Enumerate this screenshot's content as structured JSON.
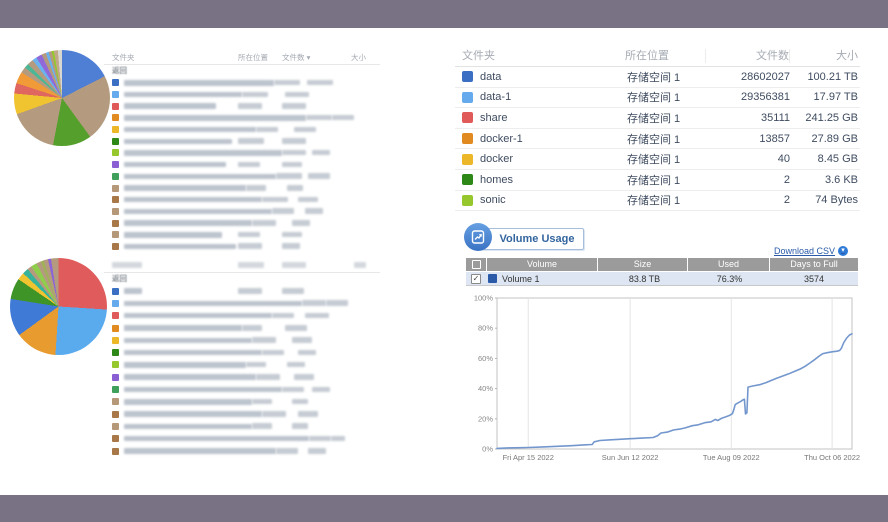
{
  "frame": {
    "bg": "#797184"
  },
  "left": {
    "top_table": {
      "headers": {
        "folder": "文件夹",
        "location": "所在位置",
        "count": "文件数",
        "size": "大小",
        "sort_arrow": "▾"
      },
      "back_label": "返回",
      "rows": [
        {
          "c": "#3a6fc4",
          "n": 150,
          "l": 26,
          "f": 26,
          "s": 14
        },
        {
          "c": "#64aaec",
          "n": 118,
          "l": 26,
          "f": 24,
          "s": 18
        },
        {
          "c": "#e05a5a",
          "n": 92,
          "l": 24,
          "f": 24,
          "s": 20
        },
        {
          "c": "#e08a20",
          "n": 182,
          "l": 26,
          "f": 22,
          "s": 20
        },
        {
          "c": "#ecb82a",
          "n": 132,
          "l": 22,
          "f": 22,
          "s": 18
        },
        {
          "c": "#2e8818",
          "n": 108,
          "l": 26,
          "f": 24,
          "s": 22
        },
        {
          "c": "#96c82e",
          "n": 158,
          "l": 24,
          "f": 18,
          "s": 14
        },
        {
          "c": "#8a5fd4",
          "n": 102,
          "l": 22,
          "f": 20,
          "s": 16
        },
        {
          "c": "#3fa05c",
          "n": 152,
          "l": 26,
          "f": 22,
          "s": 18
        },
        {
          "c": "#b49878",
          "n": 122,
          "l": 20,
          "f": 16,
          "s": 16
        },
        {
          "c": "#a87848",
          "n": 138,
          "l": 26,
          "f": 20,
          "s": 18
        },
        {
          "c": "#b49878",
          "n": 148,
          "l": 22,
          "f": 18,
          "s": 14
        },
        {
          "c": "#a87848",
          "n": 128,
          "l": 24,
          "f": 18,
          "s": 16
        },
        {
          "c": "#b49878",
          "n": 98,
          "l": 22,
          "f": 20,
          "s": 18
        },
        {
          "c": "#a87848",
          "n": 112,
          "l": 24,
          "f": 18,
          "s": 16
        }
      ],
      "pie_slices": [
        [
          "#4e7fd4",
          0,
          17.5
        ],
        [
          "#b49b7f",
          17.5,
          40
        ],
        [
          "#55a02c",
          40,
          53
        ],
        [
          "#b49b7f",
          53,
          69.5
        ],
        [
          "#f0c330",
          69.5,
          76.5
        ],
        [
          "#e06660",
          76.5,
          80
        ],
        [
          "#f09b38",
          80,
          84
        ],
        [
          "#b49b7f",
          84,
          86
        ],
        [
          "#4ab896",
          86,
          87.5
        ],
        [
          "#b49b7f",
          87.5,
          89.5
        ],
        [
          "#6cb2ee",
          89.5,
          91
        ],
        [
          "#9068d8",
          91,
          93
        ],
        [
          "#b49b7f",
          93,
          94.5
        ],
        [
          "#6cb2ee",
          94.5,
          95.5
        ],
        [
          "#b49b7f",
          95.5,
          96.5
        ],
        [
          "#96c82e",
          96.5,
          97.3
        ],
        [
          "#c0a888",
          97.3,
          98.6
        ],
        [
          "#d8d8d0",
          98.6,
          100
        ]
      ]
    },
    "bottom_table": {
      "back_label": "返回",
      "header_bars": {
        "n": 30,
        "l": 26,
        "f": 24,
        "s": 12
      },
      "rows": [
        {
          "c": "#3a6fc4",
          "n": 18,
          "l": 24,
          "f": 22,
          "s": 16
        },
        {
          "c": "#64aaec",
          "n": 178,
          "l": 24,
          "f": 22,
          "s": 18
        },
        {
          "c": "#e05a5a",
          "n": 148,
          "l": 22,
          "f": 24,
          "s": 18
        },
        {
          "c": "#e08a20",
          "n": 118,
          "l": 20,
          "f": 22,
          "s": 16
        },
        {
          "c": "#ecb82a",
          "n": 128,
          "l": 24,
          "f": 20,
          "s": 14
        },
        {
          "c": "#2e8818",
          "n": 138,
          "l": 22,
          "f": 18,
          "s": 16
        },
        {
          "c": "#96c82e",
          "n": 122,
          "l": 20,
          "f": 18,
          "s": 12
        },
        {
          "c": "#8a5fd4",
          "n": 132,
          "l": 24,
          "f": 20,
          "s": 14
        },
        {
          "c": "#3fa05c",
          "n": 158,
          "l": 22,
          "f": 18,
          "s": 16
        },
        {
          "c": "#b49878",
          "n": 128,
          "l": 20,
          "f": 16,
          "s": 12
        },
        {
          "c": "#a87848",
          "n": 138,
          "l": 24,
          "f": 20,
          "s": 14
        },
        {
          "c": "#b49878",
          "n": 128,
          "l": 20,
          "f": 16,
          "s": 14
        },
        {
          "c": "#a87848",
          "n": 185,
          "l": 22,
          "f": 14,
          "s": 20
        },
        {
          "c": "#a87848",
          "n": 152,
          "l": 22,
          "f": 18,
          "s": 22
        }
      ],
      "pie_slices": [
        [
          "#e05c5c",
          0,
          26
        ],
        [
          "#5aabee",
          26,
          51
        ],
        [
          "#e89b2e",
          51,
          65
        ],
        [
          "#3f7ad6",
          65,
          77.5
        ],
        [
          "#3f9427",
          77.5,
          84.5
        ],
        [
          "#f0c330",
          84.5,
          87
        ],
        [
          "#35b49b",
          87,
          89
        ],
        [
          "#b49b7f",
          89,
          90.5
        ],
        [
          "#8fce4c",
          90.5,
          92.5
        ],
        [
          "#b49b7f",
          92.5,
          94
        ],
        [
          "#a0b058",
          94,
          95
        ],
        [
          "#b49b7f",
          95,
          96.5
        ],
        [
          "#8a64d8",
          96.5,
          97.5
        ],
        [
          "#b49b7f",
          97.5,
          100
        ]
      ]
    }
  },
  "right": {
    "folder_table": {
      "headers": {
        "folder": "文件夹",
        "location": "所在位置",
        "count": "文件数",
        "size": "大小"
      },
      "rows": [
        {
          "name": "data",
          "color": "#3a6fc4",
          "location": "存储空间 1",
          "files": "28602027",
          "size": "100.21 TB"
        },
        {
          "name": "data-1",
          "color": "#64aaec",
          "location": "存储空间 1",
          "files": "29356381",
          "size": "17.97 TB"
        },
        {
          "name": "share",
          "color": "#e05a5a",
          "location": "存储空间 1",
          "files": "35111",
          "size": "241.25 GB"
        },
        {
          "name": "docker-1",
          "color": "#e08a20",
          "location": "存储空间 1",
          "files": "13857",
          "size": "27.89 GB"
        },
        {
          "name": "docker",
          "color": "#ecb82a",
          "location": "存储空间 1",
          "files": "40",
          "size": "8.45 GB"
        },
        {
          "name": "homes",
          "color": "#2e8818",
          "location": "存储空间 1",
          "files": "2",
          "size": "3.6 KB"
        },
        {
          "name": "sonic",
          "color": "#96c82e",
          "location": "存储空间 1",
          "files": "2",
          "size": "74 Bytes"
        }
      ]
    },
    "volume_usage": {
      "title": "Volume Usage",
      "download_label": "Download CSV",
      "table": {
        "headers": {
          "volume": "Volume",
          "size": "Size",
          "used": "Used",
          "days": "Days to Full"
        },
        "rows": [
          {
            "name": "Volume 1",
            "size": "83.8 TB",
            "used": "76.3%",
            "days": "3574",
            "checked": true,
            "color": "#2a59a8"
          }
        ]
      }
    }
  },
  "chart_data": {
    "type": "line",
    "title": "",
    "xlabel": "",
    "ylabel": "%",
    "ylim": [
      0,
      100
    ],
    "y_ticks": [
      "0%",
      "20%",
      "40%",
      "60%",
      "80%",
      "100%"
    ],
    "x_ticks": [
      "Fri Apr 15 2022",
      "Sun Jun 12 2022",
      "Tue Aug 09 2022",
      "Thu Oct 06 2022"
    ],
    "x_tick_pos": [
      0.088,
      0.375,
      0.66,
      0.944
    ],
    "grid": "vertical",
    "legend": "none",
    "line_color": "#7397cd",
    "series_name": "Volume 1 used %",
    "points": [
      [
        0,
        0.4
      ],
      [
        0.03,
        0.7
      ],
      [
        0.088,
        1
      ],
      [
        0.13,
        1.4
      ],
      [
        0.17,
        1.8
      ],
      [
        0.21,
        2.2
      ],
      [
        0.25,
        2.8
      ],
      [
        0.268,
        3
      ],
      [
        0.274,
        4.8
      ],
      [
        0.29,
        5.6
      ],
      [
        0.32,
        6.1
      ],
      [
        0.345,
        6.4
      ],
      [
        0.375,
        6.8
      ],
      [
        0.41,
        7.2
      ],
      [
        0.44,
        7.6
      ],
      [
        0.452,
        8.8
      ],
      [
        0.462,
        10.6
      ],
      [
        0.48,
        11.2
      ],
      [
        0.497,
        12.6
      ],
      [
        0.515,
        13.2
      ],
      [
        0.53,
        14
      ],
      [
        0.55,
        15.4
      ],
      [
        0.567,
        16
      ],
      [
        0.585,
        17.4
      ],
      [
        0.603,
        18
      ],
      [
        0.615,
        19.6
      ],
      [
        0.622,
        18.9
      ],
      [
        0.633,
        20.4
      ],
      [
        0.645,
        21.4
      ],
      [
        0.656,
        22.4
      ],
      [
        0.663,
        23.4
      ],
      [
        0.667,
        26
      ],
      [
        0.671,
        29.4
      ],
      [
        0.678,
        30.4
      ],
      [
        0.686,
        31.4
      ],
      [
        0.693,
        32.6
      ],
      [
        0.697,
        33
      ],
      [
        0.7,
        23.2
      ],
      [
        0.704,
        24
      ],
      [
        0.707,
        41
      ],
      [
        0.722,
        41.8
      ],
      [
        0.74,
        42.6
      ],
      [
        0.758,
        44
      ],
      [
        0.773,
        45.4
      ],
      [
        0.788,
        46.8
      ],
      [
        0.806,
        48.4
      ],
      [
        0.822,
        49.8
      ],
      [
        0.838,
        51.4
      ],
      [
        0.854,
        53
      ],
      [
        0.868,
        54.8
      ],
      [
        0.882,
        57
      ],
      [
        0.896,
        59.4
      ],
      [
        0.908,
        61.6
      ],
      [
        0.918,
        63.2
      ],
      [
        0.93,
        63.8
      ],
      [
        0.944,
        64.4
      ],
      [
        0.958,
        64.8
      ],
      [
        0.965,
        65.2
      ],
      [
        0.97,
        66.6
      ],
      [
        0.977,
        70.5
      ],
      [
        0.985,
        73.5
      ],
      [
        0.993,
        75.5
      ],
      [
        1,
        76.3
      ]
    ]
  }
}
